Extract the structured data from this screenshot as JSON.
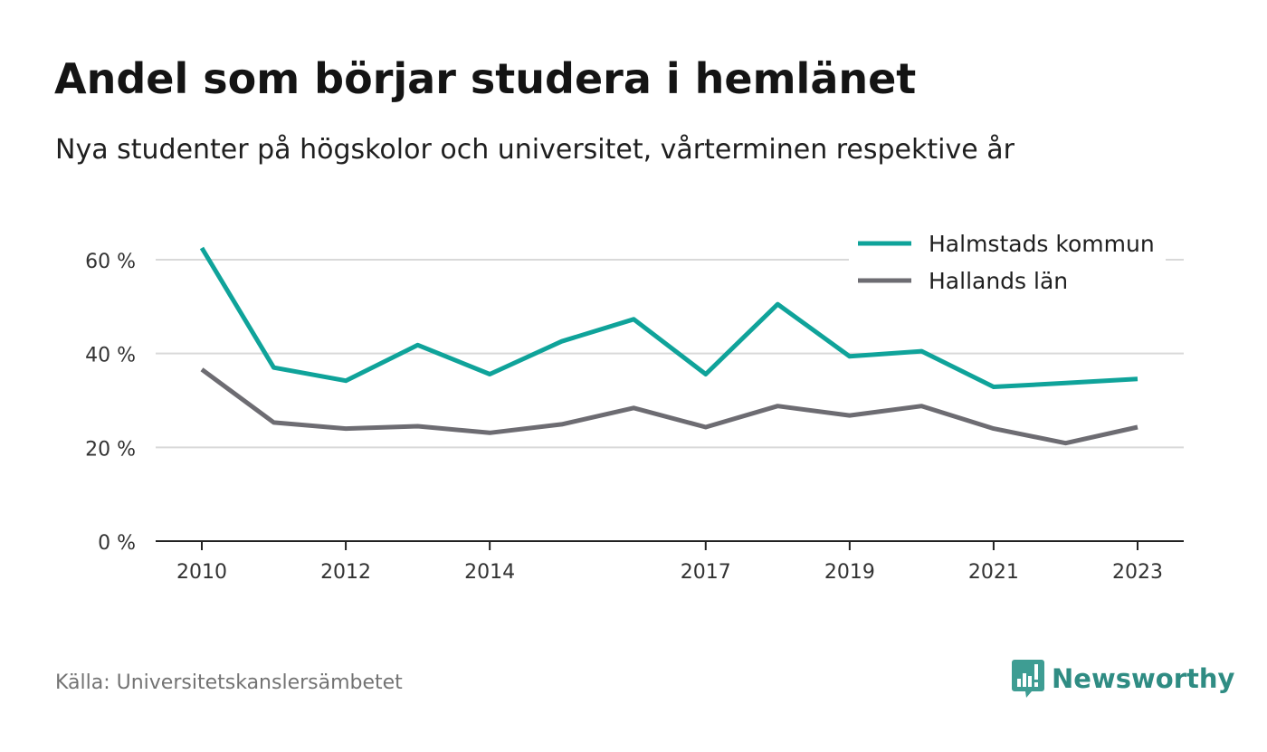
{
  "title": "Andel som börjar studera i hemlänet",
  "subtitle": "Nya studenter på högskolor och universitet, vårterminen respektive år",
  "source": "Källa: Universitetskanslersämbetet",
  "brand": {
    "name": "Newsworthy",
    "icon": "newsworthy-logo-icon",
    "color": "#2f8c83"
  },
  "chart_data": {
    "type": "line",
    "x": [
      2010,
      2011,
      2012,
      2013,
      2014,
      2015,
      2016,
      2017,
      2018,
      2019,
      2020,
      2021,
      2022,
      2023
    ],
    "x_tick_labels": [
      "2010",
      "2012",
      "2014",
      "2017",
      "2019",
      "2021",
      "2023"
    ],
    "y_ticks": [
      0,
      20,
      40,
      60
    ],
    "y_tick_labels": [
      "0 %",
      "20 %",
      "40 %",
      "60 %"
    ],
    "ylim": [
      0,
      70
    ],
    "grid": true,
    "legend_position": "top-right",
    "series": [
      {
        "name": "Halmstads kommun",
        "color": "#0fa39a",
        "values": [
          62.5,
          37.0,
          34.2,
          41.8,
          35.6,
          42.6,
          47.3,
          35.6,
          50.5,
          39.4,
          40.5,
          32.9,
          33.7,
          34.6
        ]
      },
      {
        "name": "Hallands län",
        "color": "#6d6c72",
        "values": [
          36.6,
          25.3,
          24.0,
          24.5,
          23.1,
          24.9,
          28.4,
          24.3,
          28.8,
          26.8,
          28.8,
          24.0,
          20.9,
          24.3
        ]
      }
    ]
  }
}
